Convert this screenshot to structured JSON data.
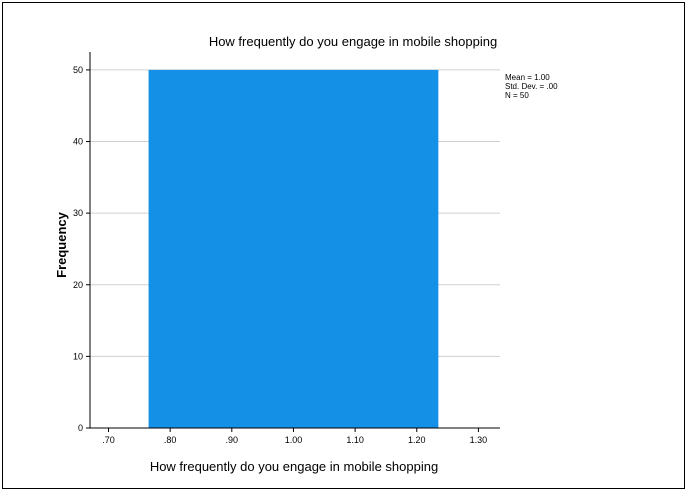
{
  "chart_data": {
    "type": "bar",
    "title": "How frequently do you engage in mobile shopping",
    "xlabel": "How frequently do you engage in mobile shopping",
    "ylabel": "Frequency",
    "x_ticks": [
      ".70",
      ".80",
      ".90",
      "1.00",
      "1.10",
      "1.20",
      "1.30"
    ],
    "x_tick_values": [
      0.7,
      0.8,
      0.9,
      1.0,
      1.1,
      1.2,
      1.3
    ],
    "xlim": [
      0.67,
      1.335
    ],
    "y_ticks": [
      "0",
      "10",
      "20",
      "30",
      "40",
      "50"
    ],
    "y_tick_values": [
      0,
      10,
      20,
      30,
      40,
      50
    ],
    "ylim": [
      0,
      52.5
    ],
    "grid": true,
    "bins": [
      {
        "x_start": 0.765,
        "x_end": 1.235,
        "value": 50
      }
    ],
    "stats": [
      "Mean = 1.00",
      "Std. Dev. = .00",
      "N = 50"
    ],
    "legend_position": "top-right",
    "bar_color": "#1490E6",
    "grid_color": "#D0D0D0",
    "axis_color": "#000000"
  }
}
